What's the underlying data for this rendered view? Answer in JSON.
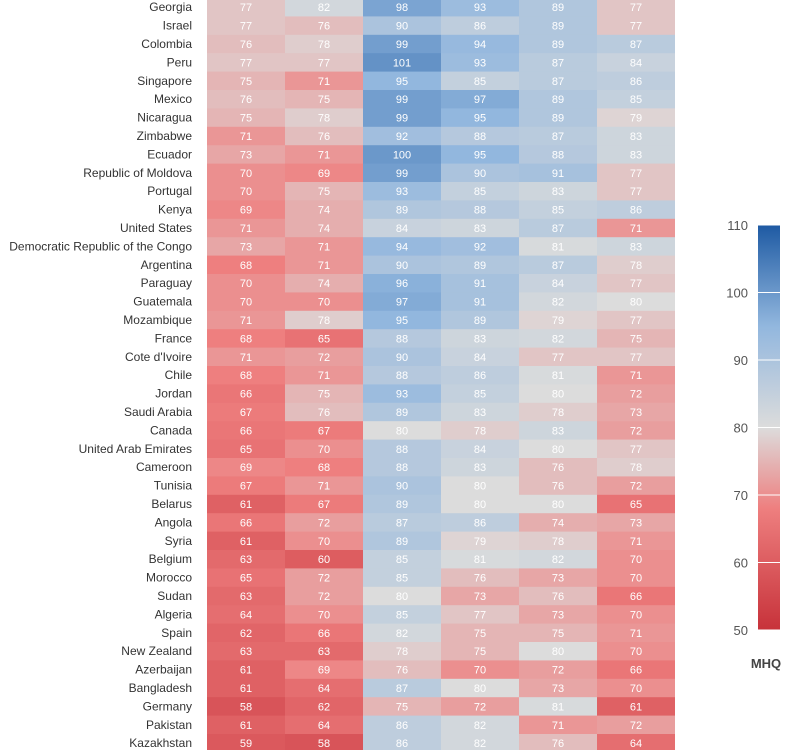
{
  "chart_data": {
    "type": "heatmap",
    "rows": [
      "Georgia",
      "Israel",
      "Colombia",
      "Peru",
      "Singapore",
      "Mexico",
      "Nicaragua",
      "Zimbabwe",
      "Ecuador",
      "Republic of Moldova",
      "Portugal",
      "Kenya",
      "United States",
      "Democratic Republic of the Congo",
      "Argentina",
      "Paraguay",
      "Guatemala",
      "Mozambique",
      "France",
      "Cote d'Ivoire",
      "Chile",
      "Jordan",
      "Saudi Arabia",
      "Canada",
      "United Arab Emirates",
      "Cameroon",
      "Tunisia",
      "Belarus",
      "Angola",
      "Syria",
      "Belgium",
      "Morocco",
      "Sudan",
      "Algeria",
      "Spain",
      "New Zealand",
      "Azerbaijan",
      "Bangladesh",
      "Germany",
      "Pakistan",
      "Kazakhstan"
    ],
    "values": [
      [
        77,
        82,
        98,
        93,
        89,
        77
      ],
      [
        77,
        76,
        90,
        86,
        89,
        77
      ],
      [
        76,
        78,
        99,
        94,
        89,
        87
      ],
      [
        77,
        77,
        101,
        93,
        87,
        84
      ],
      [
        75,
        71,
        95,
        85,
        87,
        86
      ],
      [
        76,
        75,
        99,
        97,
        89,
        85
      ],
      [
        75,
        78,
        99,
        95,
        89,
        79
      ],
      [
        71,
        76,
        92,
        88,
        87,
        83
      ],
      [
        73,
        71,
        100,
        95,
        88,
        83
      ],
      [
        70,
        69,
        99,
        90,
        91,
        77
      ],
      [
        70,
        75,
        93,
        85,
        83,
        77
      ],
      [
        69,
        74,
        89,
        88,
        85,
        86
      ],
      [
        71,
        74,
        84,
        83,
        87,
        71
      ],
      [
        73,
        71,
        94,
        92,
        81,
        83
      ],
      [
        68,
        71,
        90,
        89,
        87,
        78
      ],
      [
        70,
        74,
        96,
        91,
        84,
        77
      ],
      [
        70,
        70,
        97,
        91,
        82,
        80
      ],
      [
        71,
        78,
        95,
        89,
        79,
        77
      ],
      [
        68,
        65,
        88,
        83,
        82,
        75
      ],
      [
        71,
        72,
        90,
        84,
        77,
        77
      ],
      [
        68,
        71,
        88,
        86,
        81,
        71
      ],
      [
        66,
        75,
        93,
        85,
        80,
        72
      ],
      [
        67,
        76,
        89,
        83,
        78,
        73
      ],
      [
        66,
        67,
        80,
        78,
        83,
        72
      ],
      [
        65,
        70,
        88,
        84,
        80,
        77
      ],
      [
        69,
        68,
        88,
        83,
        76,
        78
      ],
      [
        67,
        71,
        90,
        80,
        76,
        72
      ],
      [
        61,
        67,
        89,
        80,
        80,
        65
      ],
      [
        66,
        72,
        87,
        86,
        74,
        73
      ],
      [
        61,
        70,
        89,
        79,
        78,
        71
      ],
      [
        63,
        60,
        85,
        81,
        82,
        70
      ],
      [
        65,
        72,
        85,
        76,
        73,
        70
      ],
      [
        63,
        72,
        80,
        73,
        76,
        66
      ],
      [
        64,
        70,
        85,
        77,
        73,
        70
      ],
      [
        62,
        66,
        82,
        75,
        75,
        71
      ],
      [
        63,
        63,
        78,
        75,
        80,
        70
      ],
      [
        61,
        69,
        76,
        70,
        72,
        66
      ],
      [
        61,
        64,
        87,
        80,
        73,
        70
      ],
      [
        58,
        62,
        75,
        72,
        81,
        61
      ],
      [
        61,
        64,
        86,
        82,
        71,
        72
      ],
      [
        59,
        58,
        86,
        82,
        76,
        64
      ]
    ],
    "colorbar": {
      "title": "MHQ",
      "min": 50,
      "max": 110,
      "ticks": [
        110,
        100,
        90,
        80,
        70,
        60,
        50
      ]
    },
    "colors": {
      "low": "#c7323a",
      "lowmid": "#ee7f7f",
      "mid": "#dcdcdc",
      "highmid": "#92b7de",
      "high": "#1e5aa3"
    }
  }
}
